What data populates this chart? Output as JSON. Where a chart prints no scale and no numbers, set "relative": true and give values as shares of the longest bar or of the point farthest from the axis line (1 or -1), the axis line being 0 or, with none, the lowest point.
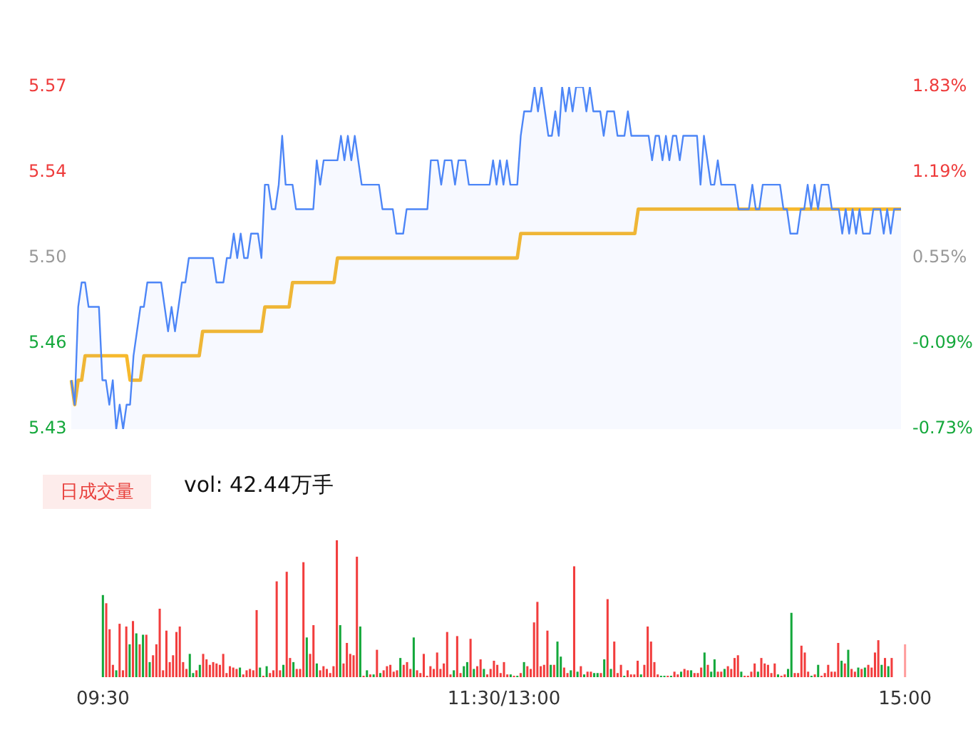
{
  "chart_data": [
    {
      "type": "line",
      "marker": "none",
      "tick_labels": "y",
      "categories": [
        null,
        null,
        null,
        null,
        null,
        null,
        null,
        null,
        null,
        null,
        null,
        null,
        null,
        null,
        null,
        null,
        null,
        null,
        null,
        null,
        null,
        null,
        null,
        null,
        null,
        null,
        null,
        null,
        null,
        null,
        null,
        null,
        null,
        null,
        null,
        null,
        null,
        null,
        null,
        null,
        null,
        null,
        null,
        null,
        null,
        null,
        null,
        null,
        null,
        null,
        null,
        null,
        null,
        null,
        null,
        null,
        null,
        null,
        null,
        null,
        null,
        null,
        null,
        null,
        null,
        null,
        null,
        null,
        null,
        null,
        null,
        null,
        null,
        null,
        null,
        null,
        null,
        null,
        null,
        null,
        null,
        null,
        null,
        null,
        null,
        null,
        null,
        null,
        null,
        null,
        null,
        null,
        null,
        null,
        null,
        null,
        null,
        null,
        null,
        null,
        null,
        null,
        null,
        null,
        null,
        null,
        null,
        null,
        null,
        null,
        null,
        null,
        null,
        null,
        null,
        null,
        null,
        null,
        null,
        null,
        null,
        null,
        null,
        null,
        null,
        null,
        null,
        null,
        null,
        null,
        null,
        null,
        null,
        null,
        null,
        null,
        null,
        null,
        null,
        null,
        null,
        null,
        null,
        null,
        null,
        null,
        null,
        null,
        null,
        null,
        null,
        null,
        null,
        null,
        null,
        null,
        null,
        null,
        null,
        null,
        null,
        null,
        null,
        null,
        null,
        null,
        null,
        null,
        null,
        null,
        null,
        null,
        null,
        null,
        null,
        null,
        null,
        null,
        null,
        null,
        null,
        null,
        null,
        null,
        null,
        null,
        null,
        null,
        null,
        null,
        null,
        null,
        null,
        null,
        null,
        null,
        null,
        null,
        null,
        null,
        null,
        null,
        null,
        null,
        null,
        null,
        null,
        null,
        null,
        null,
        null,
        null,
        null,
        null,
        null,
        null,
        null,
        null,
        null,
        null,
        null,
        null,
        null,
        null,
        null,
        null,
        null,
        null,
        null,
        null,
        null,
        null,
        null,
        null,
        null,
        null,
        null,
        null,
        null,
        null,
        null
      ],
      "ylim": [
        5.43,
        5.57
      ],
      "yticks": [
        5.43,
        {
          "value": 5.465,
          "label": "5.46"
        },
        {
          "value": 5.5,
          "label": "5.50"
        },
        {
          "value": 5.535,
          "label": "5.54"
        },
        5.57
      ],
      "y2lim": [
        -0.73,
        1.83
      ],
      "y2ticks": [
        {
          "value": -0.73,
          "label": "-0.73%"
        },
        {
          "value": -0.09,
          "label": "-0.09%"
        },
        {
          "value": 0.55,
          "label": "0.55%"
        },
        {
          "value": 1.19,
          "label": "1.19%"
        },
        {
          "value": 1.83,
          "label": "1.83%"
        }
      ],
      "series": [
        {
          "type": "area",
          "color": "#4d86f7",
          "values": [
            5.45,
            5.44,
            5.48,
            5.49,
            5.49,
            5.48,
            5.48,
            5.48,
            5.48,
            5.45,
            5.45,
            5.44,
            5.45,
            5.43,
            5.44,
            5.43,
            5.44,
            5.44,
            5.46,
            5.47,
            5.48,
            5.48,
            5.49,
            5.49,
            5.49,
            5.49,
            5.49,
            5.48,
            5.47,
            5.48,
            5.47,
            5.48,
            5.49,
            5.49,
            5.5,
            5.5,
            5.5,
            5.5,
            5.5,
            5.5,
            5.5,
            5.5,
            5.49,
            5.49,
            5.49,
            5.5,
            5.5,
            5.51,
            5.5,
            5.51,
            5.5,
            5.5,
            5.51,
            5.51,
            5.51,
            5.5,
            5.53,
            5.53,
            5.52,
            5.52,
            5.53,
            5.55,
            5.53,
            5.53,
            5.53,
            5.52,
            5.52,
            5.52,
            5.52,
            5.52,
            5.52,
            5.54,
            5.53,
            5.54,
            5.54,
            5.54,
            5.54,
            5.54,
            5.55,
            5.54,
            5.55,
            5.54,
            5.55,
            5.54,
            5.53,
            5.53,
            5.53,
            5.53,
            5.53,
            5.53,
            5.52,
            5.52,
            5.52,
            5.52,
            5.51,
            5.51,
            5.51,
            5.52,
            5.52,
            5.52,
            5.52,
            5.52,
            5.52,
            5.52,
            5.54,
            5.54,
            5.54,
            5.53,
            5.54,
            5.54,
            5.54,
            5.53,
            5.54,
            5.54,
            5.54,
            5.53,
            5.53,
            5.53,
            5.53,
            5.53,
            5.53,
            5.53,
            5.54,
            5.53,
            5.54,
            5.53,
            5.54,
            5.53,
            5.53,
            5.53,
            5.55,
            5.56,
            5.56,
            5.56,
            5.57,
            5.56,
            5.57,
            5.56,
            5.55,
            5.55,
            5.56,
            5.55,
            5.57,
            5.56,
            5.57,
            5.56,
            5.57,
            5.57,
            5.57,
            5.56,
            5.57,
            5.56,
            5.56,
            5.56,
            5.55,
            5.56,
            5.56,
            5.56,
            5.55,
            5.55,
            5.55,
            5.56,
            5.55,
            5.55,
            5.55,
            5.55,
            5.55,
            5.55,
            5.54,
            5.55,
            5.55,
            5.54,
            5.55,
            5.54,
            5.55,
            5.55,
            5.54,
            5.55,
            5.55,
            5.55,
            5.55,
            5.55,
            5.53,
            5.55,
            5.54,
            5.53,
            5.53,
            5.54,
            5.53,
            5.53,
            5.53,
            5.53,
            5.53,
            5.52,
            5.52,
            5.52,
            5.52,
            5.53,
            5.52,
            5.52,
            5.53,
            5.53,
            5.53,
            5.53,
            5.53,
            5.53,
            5.52,
            5.52,
            5.51,
            5.51,
            5.51,
            5.52,
            5.52,
            5.53,
            5.52,
            5.53,
            5.52,
            5.53,
            5.53,
            5.53,
            5.52,
            5.52,
            5.52,
            5.51,
            5.52,
            5.51,
            5.52,
            5.51,
            5.52,
            5.51,
            5.51,
            5.51,
            5.52,
            5.52,
            5.52,
            5.51,
            5.52,
            5.51,
            5.52,
            5.52,
            5.52
          ]
        },
        {
          "type": "line",
          "color": "#f7b92d",
          "values": [
            5.45,
            5.44,
            5.45,
            5.45,
            5.46,
            5.46,
            5.46,
            5.46,
            5.46,
            5.46,
            5.46,
            5.46,
            5.46,
            5.46,
            5.46,
            5.46,
            5.46,
            5.45,
            5.45,
            5.45,
            5.45,
            5.46,
            5.46,
            5.46,
            5.46,
            5.46,
            5.46,
            5.46,
            5.46,
            5.46,
            5.46,
            5.46,
            5.46,
            5.46,
            5.46,
            5.46,
            5.46,
            5.46,
            5.47,
            5.47,
            5.47,
            5.47,
            5.47,
            5.47,
            5.47,
            5.47,
            5.47,
            5.47,
            5.47,
            5.47,
            5.47,
            5.47,
            5.47,
            5.47,
            5.47,
            5.47,
            5.48,
            5.48,
            5.48,
            5.48,
            5.48,
            5.48,
            5.48,
            5.48,
            5.49,
            5.49,
            5.49,
            5.49,
            5.49,
            5.49,
            5.49,
            5.49,
            5.49,
            5.49,
            5.49,
            5.49,
            5.49,
            5.5,
            5.5,
            5.5,
            5.5,
            5.5,
            5.5,
            5.5,
            5.5,
            5.5,
            5.5,
            5.5,
            5.5,
            5.5,
            5.5,
            5.5,
            5.5,
            5.5,
            5.5,
            5.5,
            5.5,
            5.5,
            5.5,
            5.5,
            5.5,
            5.5,
            5.5,
            5.5,
            5.5,
            5.5,
            5.5,
            5.5,
            5.5,
            5.5,
            5.5,
            5.5,
            5.5,
            5.5,
            5.5,
            5.5,
            5.5,
            5.5,
            5.5,
            5.5,
            5.5,
            5.5,
            5.5,
            5.5,
            5.5,
            5.5,
            5.5,
            5.5,
            5.5,
            5.5,
            5.51,
            5.51,
            5.51,
            5.51,
            5.51,
            5.51,
            5.51,
            5.51,
            5.51,
            5.51,
            5.51,
            5.51,
            5.51,
            5.51,
            5.51,
            5.51,
            5.51,
            5.51,
            5.51,
            5.51,
            5.51,
            5.51,
            5.51,
            5.51,
            5.51,
            5.51,
            5.51,
            5.51,
            5.51,
            5.51,
            5.51,
            5.51,
            5.51,
            5.51,
            5.52,
            5.52,
            5.52,
            5.52,
            5.52,
            5.52,
            5.52,
            5.52,
            5.52,
            5.52,
            5.52,
            5.52,
            5.52,
            5.52,
            5.52,
            5.52,
            5.52,
            5.52,
            5.52,
            5.52,
            5.52,
            5.52,
            5.52,
            5.52,
            5.52,
            5.52,
            5.52,
            5.52,
            5.52,
            5.52,
            5.52,
            5.52,
            5.52,
            5.52,
            5.52,
            5.52,
            5.52,
            5.52,
            5.52,
            5.52,
            5.52,
            5.52,
            5.52,
            5.52,
            5.52,
            5.52,
            5.52,
            5.52,
            5.52,
            5.52,
            5.52,
            5.52,
            5.52,
            5.52,
            5.52,
            5.52,
            5.52,
            5.52,
            5.52,
            5.52,
            5.52,
            5.52,
            5.52,
            5.52,
            5.52,
            5.52,
            5.52,
            5.52,
            5.52,
            5.52,
            5.52,
            5.52,
            5.52,
            5.52,
            5.52,
            5.52,
            5.52
          ]
        }
      ]
    },
    {
      "type": "bar",
      "relative": true,
      "tick_labels": "x",
      "annotations": [
        "日成交量",
        "vol: 42.44万手"
      ],
      "categories": [
        "09:30",
        null,
        null,
        null,
        null,
        null,
        null,
        null,
        null,
        null,
        null,
        null,
        null,
        null,
        null,
        null,
        null,
        null,
        null,
        null,
        null,
        null,
        null,
        null,
        null,
        null,
        null,
        null,
        null,
        null,
        null,
        null,
        null,
        null,
        null,
        null,
        null,
        null,
        null,
        null,
        null,
        null,
        null,
        null,
        null,
        null,
        null,
        null,
        null,
        null,
        null,
        null,
        null,
        null,
        null,
        null,
        null,
        null,
        null,
        null,
        null,
        null,
        null,
        null,
        null,
        null,
        null,
        null,
        null,
        null,
        null,
        null,
        null,
        null,
        null,
        null,
        null,
        null,
        null,
        null,
        null,
        null,
        null,
        null,
        null,
        null,
        null,
        null,
        null,
        null,
        null,
        null,
        null,
        null,
        null,
        null,
        null,
        null,
        null,
        null,
        null,
        null,
        null,
        null,
        null,
        null,
        null,
        null,
        null,
        null,
        null,
        null,
        null,
        null,
        null,
        null,
        null,
        null,
        null,
        null,
        "11:30/13:00",
        null,
        null,
        null,
        null,
        null,
        null,
        null,
        null,
        null,
        null,
        null,
        null,
        null,
        null,
        null,
        null,
        null,
        null,
        null,
        null,
        null,
        null,
        null,
        null,
        null,
        null,
        null,
        null,
        null,
        null,
        null,
        null,
        null,
        null,
        null,
        null,
        null,
        null,
        null,
        null,
        null,
        null,
        null,
        null,
        null,
        null,
        null,
        null,
        null,
        null,
        null,
        null,
        null,
        null,
        null,
        null,
        null,
        null,
        null,
        null,
        null,
        null,
        null,
        null,
        null,
        null,
        null,
        null,
        null,
        null,
        null,
        null,
        null,
        null,
        null,
        null,
        null,
        null,
        null,
        null,
        null,
        null,
        null,
        null,
        null,
        null,
        null,
        null,
        null,
        null,
        null,
        null,
        null,
        null,
        null,
        null,
        null,
        null,
        null,
        null,
        null,
        null,
        null,
        null,
        null,
        null,
        null,
        null,
        null,
        null,
        null,
        null,
        null,
        null,
        null,
        null,
        null,
        null,
        null,
        "15:00"
      ],
      "values": [
        0.6,
        0.54,
        0.35,
        0.09,
        0.05,
        0.39,
        0.05,
        0.37,
        0.24,
        0.41,
        0.32,
        0.24,
        0.31,
        0.31,
        0.11,
        0.16,
        0.24,
        0.5,
        0.05,
        0.34,
        0.11,
        0.16,
        0.33,
        0.37,
        0.11,
        0.06,
        0.17,
        0.03,
        0.05,
        0.09,
        0.17,
        0.13,
        0.09,
        0.11,
        0.1,
        0.09,
        0.17,
        0.03,
        0.08,
        0.07,
        0.06,
        0.07,
        0.02,
        0.05,
        0.06,
        0.05,
        0.49,
        0.07,
        0.01,
        0.08,
        0.03,
        0.05,
        0.7,
        0.05,
        0.09,
        0.77,
        0.14,
        0.11,
        0.06,
        0.06,
        0.84,
        0.29,
        0.17,
        0.38,
        0.1,
        0.05,
        0.08,
        0.06,
        0.03,
        0.08,
        1,
        0.38,
        0.1,
        0.25,
        0.17,
        0.16,
        0.88,
        0.37,
        0.01,
        0.05,
        0.02,
        0.02,
        0.2,
        0.03,
        0.05,
        0.08,
        0.09,
        0.04,
        0.05,
        0.14,
        0.09,
        0.11,
        0.06,
        0.29,
        0.05,
        0.03,
        0.17,
        0.01,
        0.08,
        0.06,
        0.18,
        0.06,
        0.1,
        0.33,
        0.02,
        0.05,
        0.3,
        0.03,
        0.08,
        0.11,
        0.28,
        0.06,
        0.08,
        0.13,
        0.06,
        0.02,
        0.06,
        0.12,
        0.09,
        0.03,
        0.11,
        0.02,
        0.02,
        0.01,
        0.01,
        0.03,
        0.11,
        0.08,
        0.06,
        0.4,
        0.55,
        0.08,
        0.09,
        0.34,
        0.09,
        0.09,
        0.26,
        0.15,
        0.07,
        0.03,
        0.05,
        0.81,
        0.04,
        0.08,
        0.02,
        0.04,
        0.04,
        0.03,
        0.03,
        0.03,
        0.13,
        0.57,
        0.06,
        0.26,
        0.03,
        0.09,
        0.01,
        0.05,
        0.02,
        0.02,
        0.12,
        0.02,
        0.09,
        0.37,
        0.26,
        0.11,
        0.02,
        0.01,
        0.01,
        0.01,
        0.01,
        0.04,
        0.02,
        0.04,
        0.06,
        0.05,
        0.05,
        0.03,
        0.03,
        0.07,
        0.18,
        0.09,
        0.04,
        0.13,
        0.04,
        0.04,
        0.06,
        0.08,
        0.06,
        0.14,
        0.16,
        0.04,
        0.01,
        0.01,
        0.04,
        0.1,
        0.04,
        0.14,
        0.1,
        0.09,
        0.03,
        0.1,
        0.02,
        0.01,
        0.02,
        0.06,
        0.47,
        0.03,
        0.03,
        0.23,
        0.18,
        0.04,
        0.01,
        0.02,
        0.09,
        0.01,
        0.03,
        0.09,
        0.04,
        0.04,
        0.25,
        0.12,
        0.1,
        0.2,
        0.06,
        0.04,
        0.07,
        0.06,
        0.07,
        0.09,
        0.07,
        0.18,
        0.27,
        0.09,
        0.14,
        0.08,
        0.14,
        null,
        null,
        null,
        0.24
      ],
      "colors": [
        "#14a83b",
        "#f23d3d",
        "#f23d3d",
        "#f23d3d",
        "#14a83b",
        "#f23d3d",
        "#f23d3d",
        "#f23d3d",
        "#14a83b",
        "#f23d3d",
        "#14a83b",
        "#f23d3d",
        "#14a83b",
        "#f23d3d",
        "#14a83b",
        "#f23d3d",
        "#f23d3d",
        "#f23d3d",
        "#f23d3d",
        "#f23d3d",
        "#f23d3d",
        "#f23d3d",
        "#f23d3d",
        "#f23d3d",
        "#f23d3d",
        "#f23d3d",
        "#14a83b",
        "#14a83b",
        "#f23d3d",
        "#14a83b",
        "#f23d3d",
        "#f23d3d",
        "#f23d3d",
        "#f23d3d",
        "#f23d3d",
        "#f23d3d",
        "#f23d3d",
        "#f23d3d",
        "#f23d3d",
        "#f23d3d",
        "#f23d3d",
        "#14a83b",
        "#f23d3d",
        "#f23d3d",
        "#f23d3d",
        "#f23d3d",
        "#f23d3d",
        "#14a83b",
        "#f23d3d",
        "#14a83b",
        "#f23d3d",
        "#f23d3d",
        "#f23d3d",
        "#f23d3d",
        "#14a83b",
        "#f23d3d",
        "#f23d3d",
        "#14a83b",
        "#f23d3d",
        "#f23d3d",
        "#f23d3d",
        "#14a83b",
        "#f23d3d",
        "#f23d3d",
        "#14a83b",
        "#f23d3d",
        "#f23d3d",
        "#f23d3d",
        "#f23d3d",
        "#f23d3d",
        "#f23d3d",
        "#14a83b",
        "#f23d3d",
        "#f23d3d",
        "#f23d3d",
        "#f23d3d",
        "#f23d3d",
        "#14a83b",
        "#f23d3d",
        "#14a83b",
        "#f23d3d",
        "#14a83b",
        "#f23d3d",
        "#14a83b",
        "#f23d3d",
        "#f23d3d",
        "#f23d3d",
        "#f23d3d",
        "#f23d3d",
        "#14a83b",
        "#f23d3d",
        "#f23d3d",
        "#f23d3d",
        "#14a83b",
        "#f23d3d",
        "#f23d3d",
        "#f23d3d",
        "#f23d3d",
        "#f23d3d",
        "#f23d3d",
        "#f23d3d",
        "#f23d3d",
        "#f23d3d",
        "#f23d3d",
        "#f23d3d",
        "#14a83b",
        "#f23d3d",
        "#f23d3d",
        "#14a83b",
        "#14a83b",
        "#f23d3d",
        "#14a83b",
        "#f23d3d",
        "#f23d3d",
        "#14a83b",
        "#f23d3d",
        "#f23d3d",
        "#f23d3d",
        "#f23d3d",
        "#f23d3d",
        "#f23d3d",
        "#f23d3d",
        "#14a83b",
        "#f23d3d",
        "#14a83b",
        "#f23d3d",
        "#14a83b",
        "#f23d3d",
        "#f23d3d",
        "#f23d3d",
        "#f23d3d",
        "#f23d3d",
        "#f23d3d",
        "#f23d3d",
        "#14a83b",
        "#f23d3d",
        "#14a83b",
        "#14a83b",
        "#f23d3d",
        "#f23d3d",
        "#14a83b",
        "#f23d3d",
        "#14a83b",
        "#f23d3d",
        "#14a83b",
        "#f23d3d",
        "#f23d3d",
        "#14a83b",
        "#14a83b",
        "#f23d3d",
        "#14a83b",
        "#f23d3d",
        "#14a83b",
        "#f23d3d",
        "#f23d3d",
        "#f23d3d",
        "#14a83b",
        "#f23d3d",
        "#f23d3d",
        "#f23d3d",
        "#f23d3d",
        "#14a83b",
        "#f23d3d",
        "#f23d3d",
        "#f23d3d",
        "#f23d3d",
        "#f23d3d",
        "#14a83b",
        "#14a83b",
        "#f23d3d",
        "#14a83b",
        "#f23d3d",
        "#f23d3d",
        "#14a83b",
        "#f23d3d",
        "#f23d3d",
        "#14a83b",
        "#f23d3d",
        "#f23d3d",
        "#f23d3d",
        "#14a83b",
        "#f23d3d",
        "#14a83b",
        "#14a83b",
        "#f23d3d",
        "#f23d3d",
        "#14a83b",
        "#f23d3d",
        "#f23d3d",
        "#f23d3d",
        "#f23d3d",
        "#14a83b",
        "#f23d3d",
        "#f23d3d",
        "#f23d3d",
        "#f23d3d",
        "#14a83b",
        "#f23d3d",
        "#f23d3d",
        "#f23d3d",
        "#f23d3d",
        "#f23d3d",
        "#14a83b",
        "#f23d3d",
        "#f23d3d",
        "#14a83b",
        "#14a83b",
        "#f23d3d",
        "#f23d3d",
        "#f23d3d",
        "#f23d3d",
        "#f23d3d",
        "#14a83b",
        "#f23d3d",
        "#14a83b",
        "#f23d3d",
        "#f23d3d",
        "#f23d3d",
        "#f23d3d",
        "#f23d3d",
        "#f23d3d",
        "#14a83b",
        "#f23d3d",
        "#14a83b",
        "#f23d3d",
        "#f23d3d",
        "#14a83b",
        "#f23d3d",
        "#14a83b",
        "#f23d3d",
        "#f23d3d",
        "#f23d3d",
        "#f23d3d",
        "#14a83b",
        "#f23d3d",
        "#14a83b",
        "#f23d3d",
        "#f23d3d",
        "#f23d3d",
        "#f23d3d",
        "#ff9d9d"
      ]
    }
  ]
}
